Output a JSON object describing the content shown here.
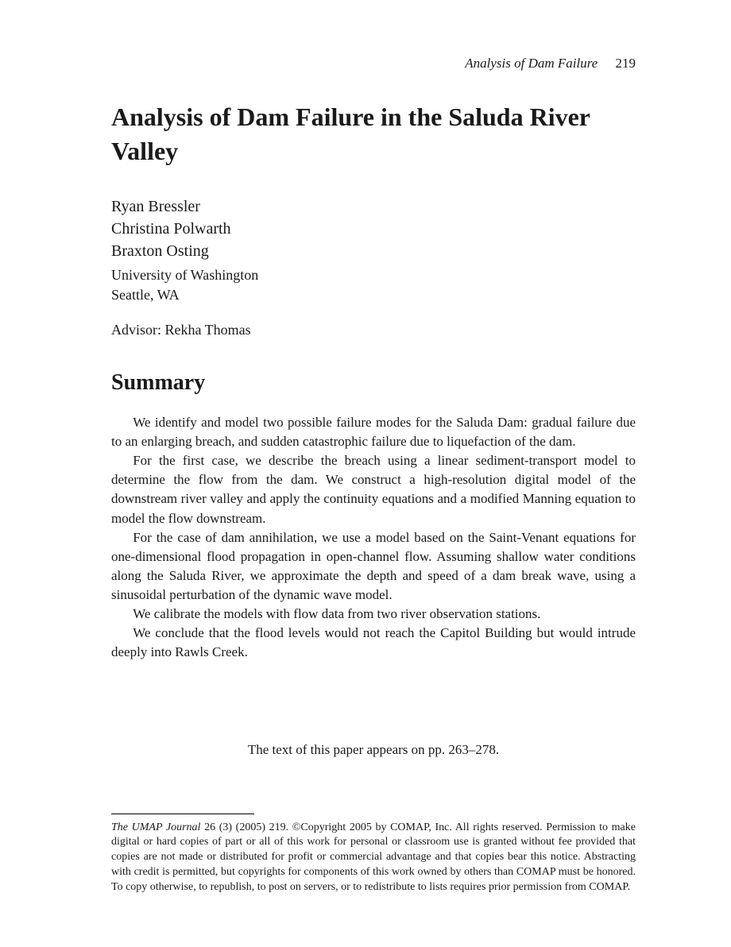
{
  "running_head": {
    "short_title": "Analysis of Dam Failure",
    "page_number": "219"
  },
  "title": "Analysis of Dam Failure in the Saluda River Valley",
  "authors": [
    "Ryan Bressler",
    "Christina Polwarth",
    "Braxton Osting"
  ],
  "affiliation": {
    "institution": "University of Washington",
    "location": "Seattle, WA"
  },
  "advisor_label": "Advisor: Rekha Thomas",
  "section_heading": "Summary",
  "paragraphs": [
    "We identify and model two possible failure modes for the Saluda Dam: gradual failure due to an enlarging breach, and sudden catastrophic failure due to liquefaction of the dam.",
    "For the first case, we describe the breach using a linear sediment-transport model to determine the flow from the dam. We construct a high-resolution digital model of the downstream river valley and apply the continuity equations and a modified Manning equation to model the flow downstream.",
    "For the case of dam annihilation, we use a model based on the Saint-Venant equations for one-dimensional flood propagation in open-channel flow. Assuming shallow water conditions along the Saluda River, we approximate the depth and speed of a dam break wave, using a sinusoidal perturbation of the dynamic wave model.",
    "We calibrate the models with flow data from two river observation stations.",
    "We conclude that the flood levels would not reach the Capitol Building but would intrude deeply into Rawls Creek."
  ],
  "pointer_text": "The text of this paper appears on pp. 263–278.",
  "footnote": {
    "journal_name": "The UMAP Journal",
    "citation_tail": " 26 (3) (2005) 219. ©Copyright 2005 by COMAP, Inc. All rights reserved. Permission to make digital or hard copies of part or all of this work for personal or classroom use is granted without fee provided that copies are not made or distributed for profit or commercial advantage and that copies bear this notice. Abstracting with credit is permitted, but copyrights for components of this work owned by others than COMAP must be honored. To copy otherwise, to republish, to post on servers, or to redistribute to lists requires prior permission from COMAP."
  }
}
